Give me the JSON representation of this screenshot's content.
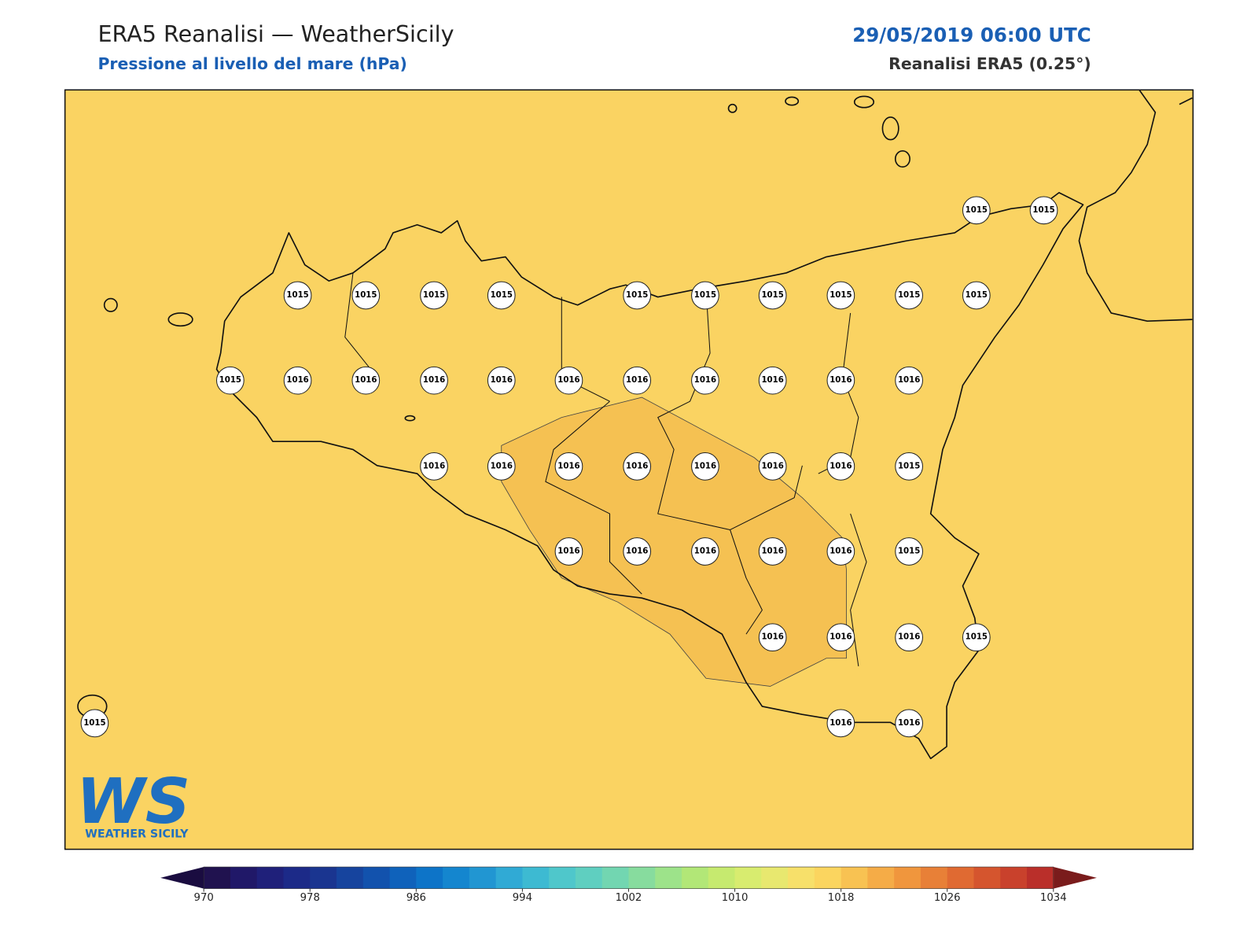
{
  "header": {
    "title": "ERA5 Reanalisi — WeatherSicily",
    "subtitle": "Pressione al livello del mare (hPa)",
    "date": "29/05/2019 06:00 UTC",
    "source": "Reanalisi ERA5 (0.25°)"
  },
  "map": {
    "stations": [
      1015,
      1015,
      1015,
      1015,
      1015,
      1015,
      1015,
      1015,
      1015,
      1015,
      1015,
      1015,
      1015,
      1016,
      1016,
      1016,
      1016,
      1016,
      1016,
      1016,
      1016,
      1016,
      1016,
      1016,
      1016,
      1016,
      1016,
      1016,
      1016,
      1016,
      1015,
      1016,
      1016,
      1016,
      1016,
      1016,
      1015,
      1016,
      1016,
      1016,
      1015,
      1016,
      1016,
      1015
    ]
  },
  "logo": {
    "text": "WS",
    "subtext": "WEATHER SICILY"
  },
  "colorbar": {
    "lim": [
      970,
      1034
    ],
    "step": 2,
    "ticks": [
      970,
      978,
      986,
      994,
      1002,
      1010,
      1018,
      1026,
      1034
    ],
    "colors": [
      "#20124f",
      "#201868",
      "#1f207a",
      "#1c2a88",
      "#1a3590",
      "#16449e",
      "#1252ad",
      "#0f62bb",
      "#0d74c8",
      "#1486cf",
      "#2196d2",
      "#30aad5",
      "#3dbad2",
      "#4fc7cb",
      "#5fcfc0",
      "#72d6b1",
      "#87dc9e",
      "#9de38a",
      "#b2e777",
      "#c6ea6f",
      "#d8ec6f",
      "#e8e86f",
      "#f7e06a",
      "#fbd55f",
      "#f8c252",
      "#f5ac47",
      "#f0963d",
      "#e88037",
      "#e06a32",
      "#d5552e",
      "#c9412c",
      "#ba2f2a"
    ],
    "under": "#1a0c40",
    "over": "#7a1c1c"
  }
}
